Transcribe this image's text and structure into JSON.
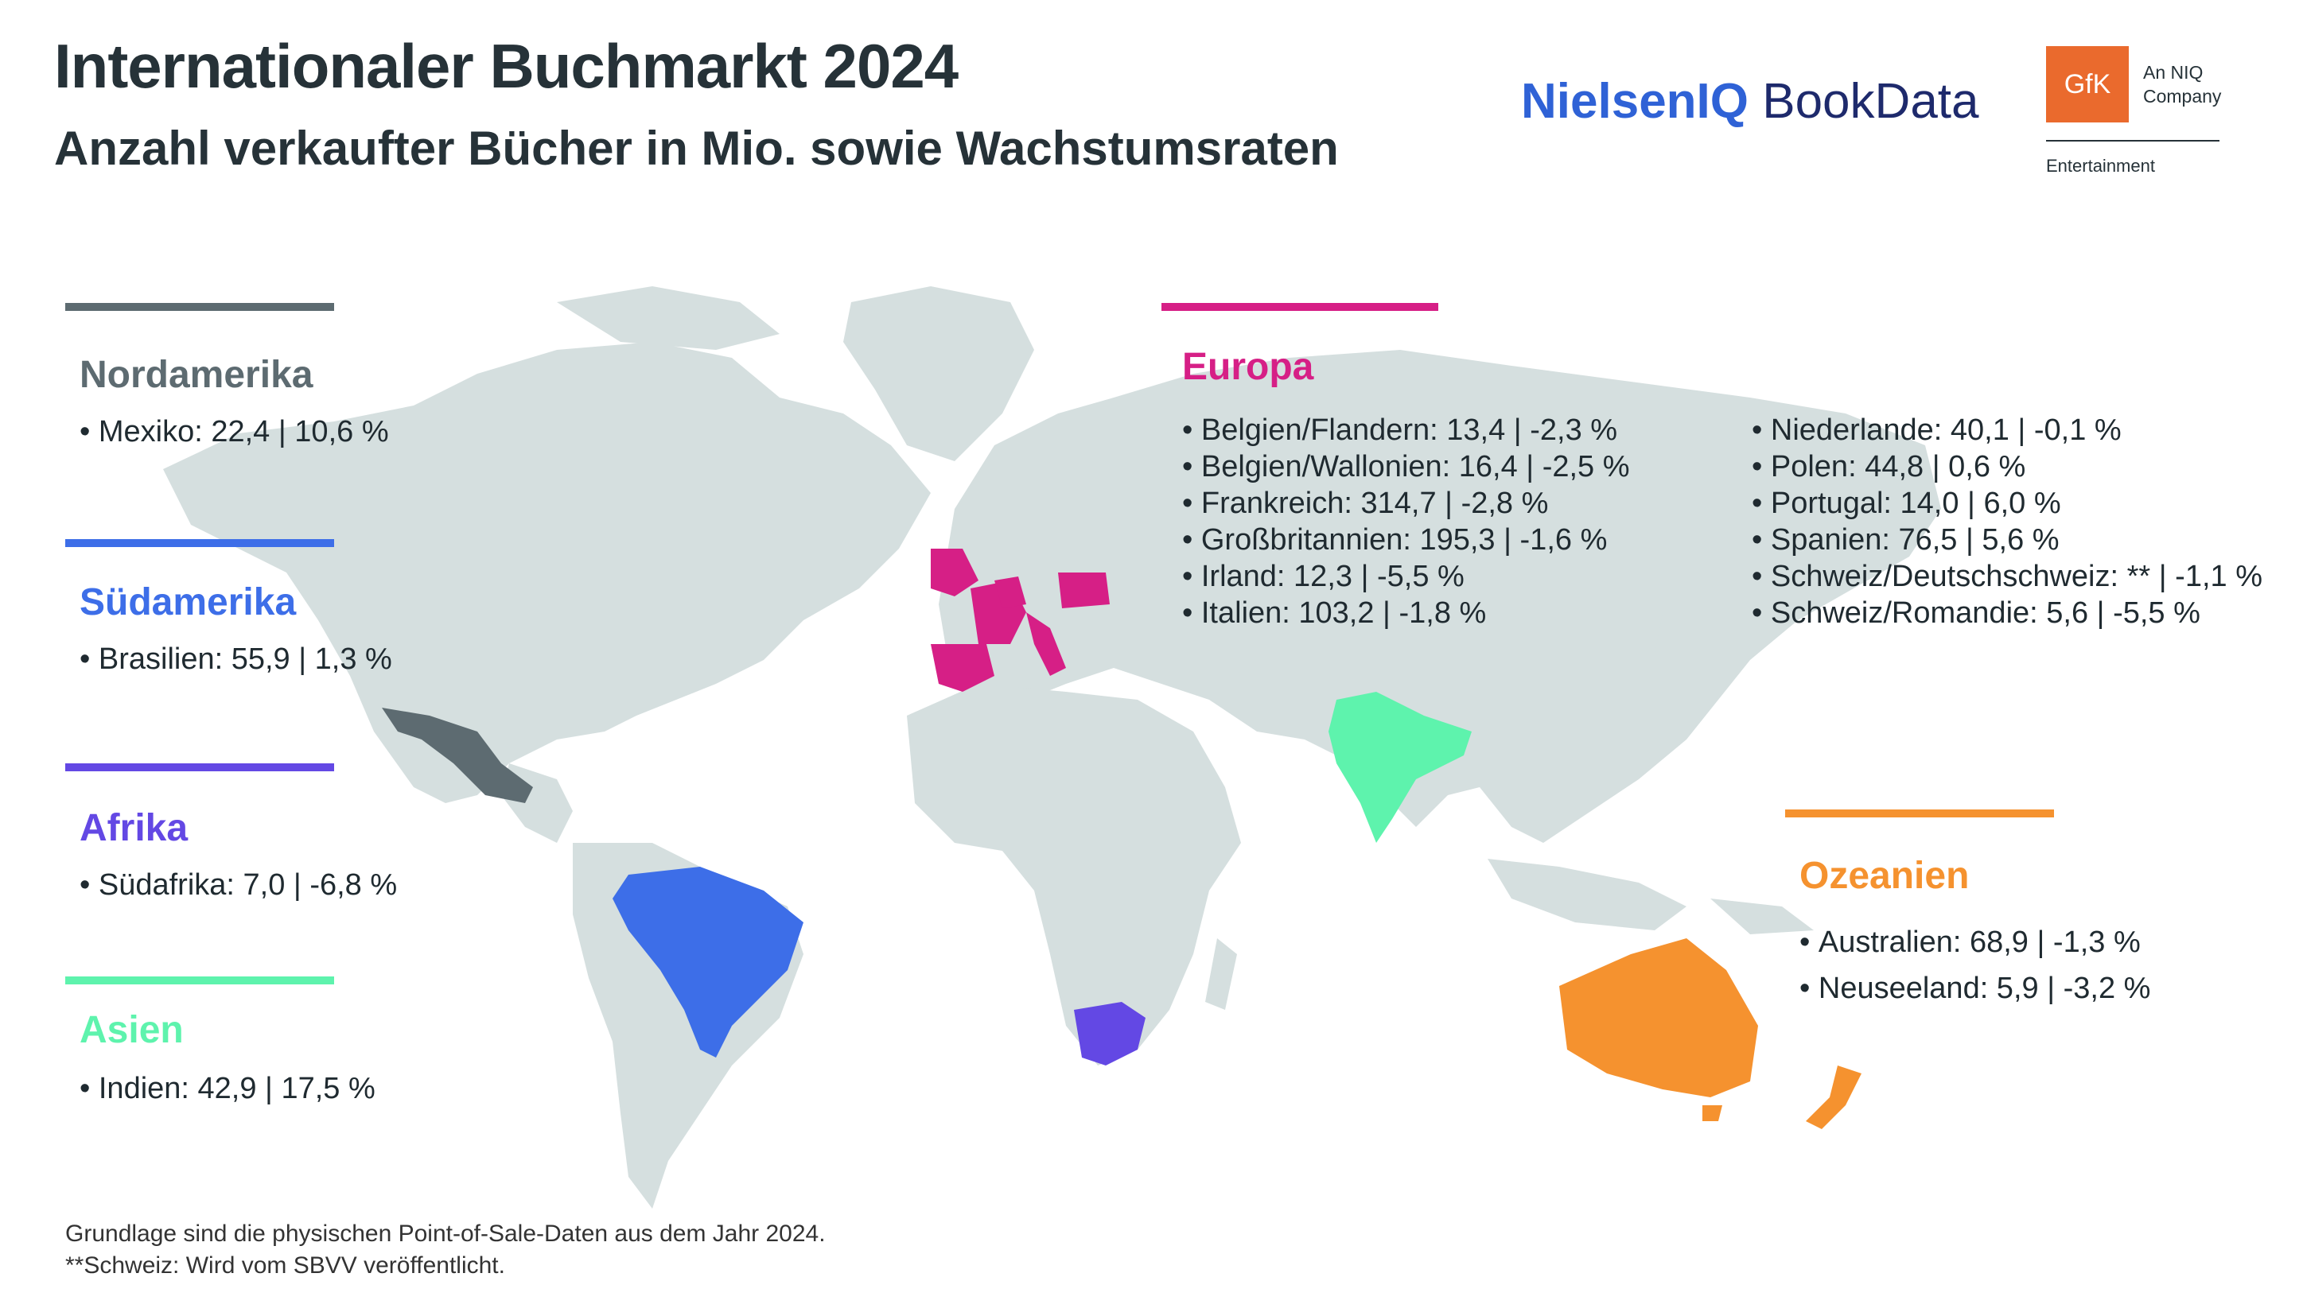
{
  "header": {
    "title": "Internationaler Buchmarkt 2024",
    "subtitle": "Anzahl verkaufter Bücher in Mio. sowie Wachstumsraten"
  },
  "logos": {
    "nielseniq_bold": "NielsenIQ",
    "nielseniq_light": " BookData",
    "gfk": "GfK",
    "gfk_tag_line1": "An NIQ",
    "gfk_tag_line2": "Company",
    "gfk_sub": "Entertainment"
  },
  "colors": {
    "land": "#d5dfdf",
    "nordamerika": "#5d6b71",
    "suedamerika": "#3d6ee8",
    "afrika": "#6348e4",
    "asien": "#5ef3ad",
    "europa": "#d61f86",
    "ozeanien": "#f5922f"
  },
  "regions": {
    "nordamerika": {
      "title": "Nordamerika",
      "items": [
        "Mexiko: 22,4 | 10,6 %"
      ]
    },
    "suedamerika": {
      "title": "Südamerika",
      "items": [
        "Brasilien: 55,9 | 1,3 %"
      ]
    },
    "afrika": {
      "title": "Afrika",
      "items": [
        "Südafrika: 7,0 | -6,8 %"
      ]
    },
    "asien": {
      "title": "Asien",
      "items": [
        "Indien: 42,9 | 17,5 %"
      ]
    },
    "europa": {
      "title": "Europa",
      "items_left": [
        "Belgien/Flandern: 13,4 | -2,3 %",
        "Belgien/Wallonien: 16,4 | -2,5 %",
        "Frankreich: 314,7 | -2,8 %",
        "Großbritannien: 195,3 | -1,6 %",
        "Irland: 12,3 | -5,5 %",
        "Italien: 103,2 | -1,8 %"
      ],
      "items_right": [
        "Niederlande: 40,1 | -0,1 %",
        "Polen: 44,8 | 0,6 %",
        "Portugal: 14,0 | 6,0 %",
        "Spanien: 76,5 | 5,6 %",
        "Schweiz/Deutschschweiz: ** | -1,1 %",
        "Schweiz/Romandie: 5,6 | -5,5 %"
      ]
    },
    "ozeanien": {
      "title": "Ozeanien",
      "items": [
        "Australien: 68,9 | -1,3 %",
        "Neuseeland: 5,9 | -3,2 %"
      ]
    }
  },
  "footnotes": [
    "Grundlage sind die physischen Point-of-Sale-Daten aus dem Jahr 2024.",
    "**Schweiz: Wird vom SBVV veröffentlicht."
  ]
}
